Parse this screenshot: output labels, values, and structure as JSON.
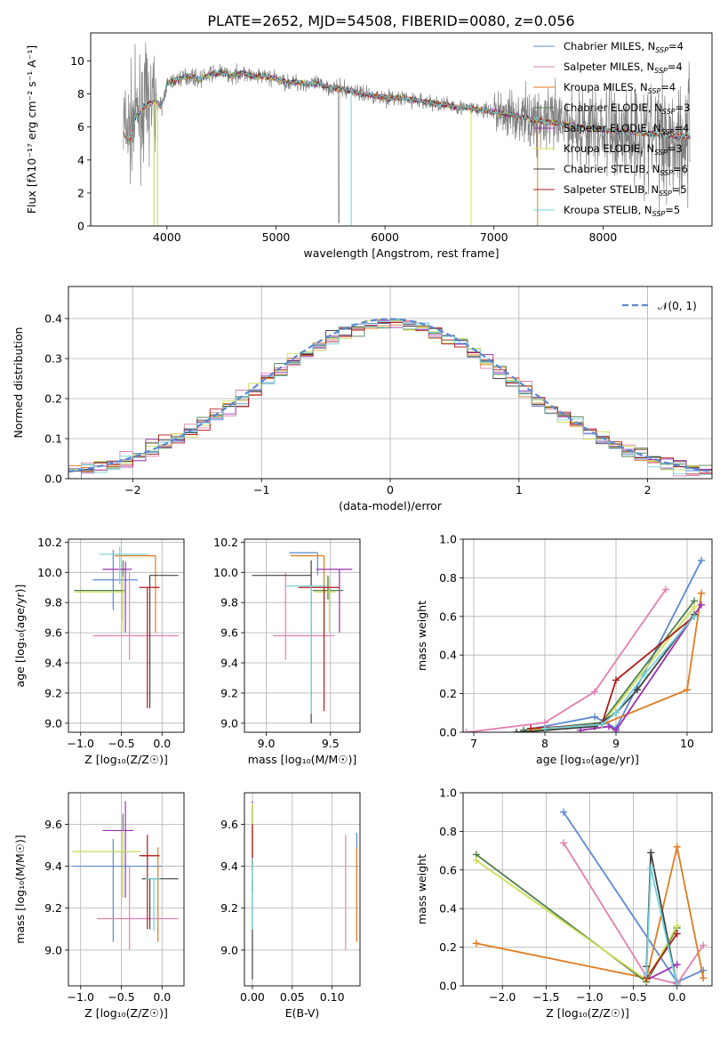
{
  "figure_title": "PLATE=2652, MJD=54508, FIBERID=0080, z=0.056",
  "colors": {
    "Chabrier MILES": "#5b88d2",
    "Salpeter MILES": "#e27fb0",
    "Kroupa MILES": "#e07a1f",
    "Chabrier ELODIE": "#4e7f4e",
    "Salpeter ELODIE": "#9b2fb0",
    "Kroupa ELODIE": "#cddf55",
    "Chabrier STELIB": "#404040",
    "Salpeter STELIB": "#b01a1a",
    "Kroupa STELIB": "#72d2dc",
    "data": "#808080",
    "normal": "#5b88d2"
  },
  "chart_data": [
    {
      "id": "spectrum",
      "type": "line",
      "title": "PLATE=2652, MJD=54508, FIBERID=0080, z=0.056",
      "xlabel": "wavelength [Angstrom, rest frame]",
      "ylabel": "Flux [fλ10⁻¹⁷ erg cm⁻² s⁻¹ A⁻¹]",
      "xlim": [
        3300,
        9000
      ],
      "ylim": [
        0,
        11.7
      ],
      "xticks": [
        4000,
        5000,
        6000,
        7000,
        8000
      ],
      "yticks": [
        0,
        2,
        4,
        6,
        8,
        10
      ],
      "grid": false,
      "legend_position": "top-right",
      "legend": [
        {
          "name": "Chabrier MILES",
          "nssp": "4"
        },
        {
          "name": "Salpeter MILES",
          "nssp": "4"
        },
        {
          "name": "Kroupa MILES",
          "nssp": "4"
        },
        {
          "name": "Chabrier ELODIE",
          "nssp": "3"
        },
        {
          "name": "Salpeter ELODIE",
          "nssp": "4"
        },
        {
          "name": "Kroupa ELODIE",
          "nssp": "3"
        },
        {
          "name": "Chabrier STELIB",
          "nssp": "6"
        },
        {
          "name": "Salpeter STELIB",
          "nssp": "5"
        },
        {
          "name": "Kroupa STELIB",
          "nssp": "5"
        }
      ],
      "continuum": [
        [
          3600,
          6.2
        ],
        [
          3650,
          5.7
        ],
        [
          3700,
          6.5
        ],
        [
          3800,
          7.3
        ],
        [
          3900,
          7.6
        ],
        [
          3950,
          7.2
        ],
        [
          4000,
          8.6
        ],
        [
          4100,
          8.9
        ],
        [
          4200,
          9.1
        ],
        [
          4300,
          8.9
        ],
        [
          4400,
          9.2
        ],
        [
          4500,
          9.3
        ],
        [
          4600,
          9.1
        ],
        [
          4700,
          9.3
        ],
        [
          4800,
          9.0
        ],
        [
          4900,
          9.1
        ],
        [
          5000,
          8.9
        ],
        [
          5100,
          8.7
        ],
        [
          5200,
          8.7
        ],
        [
          5300,
          8.6
        ],
        [
          5400,
          8.6
        ],
        [
          5500,
          8.4
        ],
        [
          5600,
          8.3
        ],
        [
          5700,
          8.2
        ],
        [
          5800,
          8.0
        ],
        [
          5900,
          7.9
        ],
        [
          6000,
          7.8
        ],
        [
          6200,
          7.7
        ],
        [
          6400,
          7.5
        ],
        [
          6600,
          7.3
        ],
        [
          6800,
          7.1
        ],
        [
          7000,
          6.9
        ],
        [
          7200,
          6.7
        ],
        [
          7400,
          6.4
        ],
        [
          7600,
          6.2
        ],
        [
          7800,
          6.0
        ],
        [
          8000,
          5.8
        ],
        [
          8200,
          5.7
        ],
        [
          8400,
          5.6
        ],
        [
          8600,
          5.5
        ],
        [
          8800,
          5.4
        ]
      ]
    },
    {
      "id": "residuals",
      "type": "histogram",
      "xlabel": "(data-model)/error",
      "ylabel": "Normed distribution",
      "xlim": [
        -2.5,
        2.5
      ],
      "ylim": [
        0,
        0.48
      ],
      "xticks": [
        -2,
        -1,
        0,
        1,
        2
      ],
      "yticks": [
        0.0,
        0.1,
        0.2,
        0.3,
        0.4
      ],
      "grid": true,
      "legend_position": "top-right",
      "legend": [
        "𝒩(0, 1)"
      ],
      "bin_width": 0.1,
      "bin_start": -2.5
    },
    {
      "id": "age-vs-Z",
      "type": "scatter",
      "xlabel": "Z [log₁₀(Z/Z☉)]",
      "ylabel": "age [log₁₀(age/yr)]",
      "xlim": [
        -1.15,
        0.27
      ],
      "ylim": [
        8.94,
        10.22
      ],
      "xticks": [
        -1.0,
        -0.5,
        0.0
      ],
      "yticks": [
        9.0,
        9.2,
        9.4,
        9.6,
        9.8,
        10.0,
        10.2
      ],
      "grid": true,
      "series": [
        {
          "name": "Chabrier MILES",
          "x": -0.6,
          "xerr": [
            0.25,
            0.3
          ],
          "y": 9.95,
          "yerr": [
            0.2,
            0.2
          ]
        },
        {
          "name": "Salpeter MILES",
          "x": -0.4,
          "xerr": [
            0.45,
            0.6
          ],
          "y": 9.58,
          "yerr": [
            0.16,
            0.42
          ]
        },
        {
          "name": "Kroupa MILES",
          "x": -0.08,
          "xerr": [
            0.5,
            0.0
          ],
          "y": 10.11,
          "yerr": [
            0.51,
            0.0
          ]
        },
        {
          "name": "Chabrier ELODIE",
          "x": -0.48,
          "xerr": [
            0.6,
            0.02
          ],
          "y": 9.88,
          "yerr": [
            0.2,
            0.2
          ]
        },
        {
          "name": "Salpeter ELODIE",
          "x": -0.45,
          "xerr": [
            0.28,
            0.08
          ],
          "y": 10.02,
          "yerr": [
            0.42,
            0.05
          ]
        },
        {
          "name": "Kroupa ELODIE",
          "x": -0.48,
          "xerr": [
            0.6,
            0.02
          ],
          "y": 9.87,
          "yerr": [
            0.27,
            0.1
          ]
        },
        {
          "name": "Chabrier STELIB",
          "x": -0.15,
          "xerr": [
            0.0,
            0.35
          ],
          "y": 9.98,
          "yerr": [
            0.88,
            0.0
          ]
        },
        {
          "name": "Salpeter STELIB",
          "x": -0.18,
          "xerr": [
            0.1,
            0.15
          ],
          "y": 9.9,
          "yerr": [
            0.8,
            0.0
          ]
        },
        {
          "name": "Kroupa STELIB",
          "x": -0.52,
          "xerr": [
            0.25,
            0.35
          ],
          "y": 10.12,
          "yerr": [
            0.2,
            0.05
          ]
        }
      ]
    },
    {
      "id": "age-vs-mass",
      "type": "scatter",
      "xlabel": "mass [log₁₀(M/M☉)]",
      "ylabel": "",
      "xlim": [
        8.83,
        9.73
      ],
      "ylim": [
        8.94,
        10.22
      ],
      "xticks": [
        9.0,
        9.5
      ],
      "yticks": [
        9.0,
        9.2,
        9.4,
        9.6,
        9.8,
        10.0,
        10.2
      ],
      "grid": true,
      "series": [
        {
          "name": "Chabrier MILES",
          "x": 9.4,
          "xerr": [
            0.22,
            0.0
          ],
          "y": 10.13,
          "yerr": [
            0.15,
            0.0
          ]
        },
        {
          "name": "Salpeter MILES",
          "x": 9.15,
          "xerr": [
            0.1,
            0.38
          ],
          "y": 9.58,
          "yerr": [
            0.16,
            0.42
          ]
        },
        {
          "name": "Kroupa MILES",
          "x": 9.45,
          "xerr": [
            0.26,
            0.0
          ],
          "y": 10.11,
          "yerr": [
            0.5,
            0.0
          ]
        },
        {
          "name": "Chabrier ELODIE",
          "x": 9.48,
          "xerr": [
            0.12,
            0.12
          ],
          "y": 9.88,
          "yerr": [
            0.06,
            0.1
          ]
        },
        {
          "name": "Salpeter ELODIE",
          "x": 9.57,
          "xerr": [
            0.18,
            0.1
          ],
          "y": 10.02,
          "yerr": [
            0.42,
            0.0
          ]
        },
        {
          "name": "Kroupa ELODIE",
          "x": 9.49,
          "xerr": [
            0.12,
            0.05
          ],
          "y": 9.87,
          "yerr": [
            0.27,
            0.1
          ]
        },
        {
          "name": "Chabrier STELIB",
          "x": 9.35,
          "xerr": [
            0.46,
            0.0
          ],
          "y": 9.98,
          "yerr": [
            0.98,
            0.1
          ]
        },
        {
          "name": "Salpeter STELIB",
          "x": 9.45,
          "xerr": [
            0.2,
            0.12
          ],
          "y": 9.9,
          "yerr": [
            0.82,
            0.0
          ]
        },
        {
          "name": "Kroupa STELIB",
          "x": 9.35,
          "xerr": [
            0.2,
            0.12
          ],
          "y": 9.91,
          "yerr": [
            0.85,
            0.0
          ]
        }
      ]
    },
    {
      "id": "weight-vs-age",
      "type": "line",
      "xlabel": "age [log₁₀(age/yr)]",
      "ylabel": "mass weight",
      "xlim": [
        6.85,
        10.35
      ],
      "ylim": [
        0.0,
        1.0
      ],
      "xticks": [
        7,
        8,
        9,
        10
      ],
      "yticks": [
        0.0,
        0.2,
        0.4,
        0.6,
        0.8,
        1.0
      ],
      "grid": true,
      "series": [
        {
          "name": "Chabrier MILES",
          "x": [
            7.7,
            8.7,
            9.0,
            10.2
          ],
          "y": [
            0.01,
            0.08,
            0.02,
            0.89
          ]
        },
        {
          "name": "Salpeter MILES",
          "x": [
            6.9,
            8.0,
            8.7,
            9.7
          ],
          "y": [
            0.0,
            0.05,
            0.21,
            0.74
          ]
        },
        {
          "name": "Kroupa MILES",
          "x": [
            8.0,
            8.8,
            10.0,
            10.2
          ],
          "y": [
            0.02,
            0.04,
            0.22,
            0.72
          ]
        },
        {
          "name": "Chabrier ELODIE",
          "x": [
            7.7,
            8.8,
            10.1
          ],
          "y": [
            0.01,
            0.05,
            0.68
          ]
        },
        {
          "name": "Salpeter ELODIE",
          "x": [
            8.5,
            8.9,
            9.0,
            10.2
          ],
          "y": [
            0.01,
            0.03,
            0.01,
            0.66
          ]
        },
        {
          "name": "Kroupa ELODIE",
          "x": [
            7.8,
            8.8,
            10.1
          ],
          "y": [
            0.01,
            0.04,
            0.65
          ]
        },
        {
          "name": "Chabrier STELIB",
          "x": [
            7.6,
            8.0,
            8.7,
            9.0,
            9.3,
            10.1
          ],
          "y": [
            0.0,
            0.01,
            0.03,
            0.1,
            0.22,
            0.61
          ]
        },
        {
          "name": "Salpeter STELIB",
          "x": [
            7.8,
            8.8,
            9.0,
            10.1
          ],
          "y": [
            0.02,
            0.04,
            0.27,
            0.6
          ]
        },
        {
          "name": "Kroupa STELIB",
          "x": [
            8.0,
            8.8,
            9.0,
            9.4,
            10.1
          ],
          "y": [
            0.02,
            0.04,
            0.1,
            0.3,
            0.6
          ]
        }
      ]
    },
    {
      "id": "mass-vs-Z",
      "type": "scatter",
      "xlabel": "Z [log₁₀(Z/Z☉)]",
      "ylabel": "mass [log₁₀(M/M☉)]",
      "xlim": [
        -1.15,
        0.27
      ],
      "ylim": [
        8.83,
        9.75
      ],
      "xticks": [
        -1.0,
        -0.5,
        0.0
      ],
      "yticks": [
        9.0,
        9.2,
        9.4,
        9.6
      ],
      "grid": true,
      "series": [
        {
          "name": "Chabrier MILES",
          "x": -0.6,
          "xerr": [
            0.5,
            0.6
          ],
          "y": 9.4,
          "yerr": [
            0.36,
            0.13
          ]
        },
        {
          "name": "Salpeter MILES",
          "x": -0.4,
          "xerr": [
            0.4,
            0.6
          ],
          "y": 9.15,
          "yerr": [
            0.15,
            0.25
          ]
        },
        {
          "name": "Kroupa MILES",
          "x": -0.05,
          "xerr": [
            0.2,
            0.0
          ],
          "y": 9.45,
          "yerr": [
            0.41,
            0.04
          ]
        },
        {
          "name": "Chabrier ELODIE",
          "x": -0.48,
          "xerr": [
            0.62,
            0.22
          ],
          "y": 9.47,
          "yerr": [
            0.22,
            0.18
          ]
        },
        {
          "name": "Salpeter ELODIE",
          "x": -0.45,
          "xerr": [
            0.28,
            0.1
          ],
          "y": 9.57,
          "yerr": [
            0.32,
            0.14
          ]
        },
        {
          "name": "Kroupa ELODIE",
          "x": -0.48,
          "xerr": [
            0.62,
            0.22
          ],
          "y": 9.47,
          "yerr": [
            0.22,
            0.1
          ]
        },
        {
          "name": "Chabrier STELIB",
          "x": -0.15,
          "xerr": [
            0.1,
            0.35
          ],
          "y": 9.34,
          "yerr": [
            0.24,
            0.0
          ]
        },
        {
          "name": "Salpeter STELIB",
          "x": -0.18,
          "xerr": [
            0.1,
            0.15
          ],
          "y": 9.45,
          "yerr": [
            0.35,
            0.1
          ]
        },
        {
          "name": "Kroupa STELIB",
          "x": -0.1,
          "xerr": [
            0.1,
            0.08
          ],
          "y": 9.34,
          "yerr": [
            0.25,
            0.0
          ]
        }
      ]
    },
    {
      "id": "mass-vs-EBV",
      "type": "scatter",
      "xlabel": "E(B-V)",
      "ylabel": "",
      "xlim": [
        -0.01,
        0.135
      ],
      "ylim": [
        8.83,
        9.75
      ],
      "xticks": [
        0.0,
        0.05,
        0.1
      ],
      "yticks": [
        9.0,
        9.2,
        9.4,
        9.6
      ],
      "grid": true,
      "series": [
        {
          "name": "Chabrier MILES",
          "x": 0.131,
          "y": 9.4,
          "yerr": [
            0.36,
            0.16
          ]
        },
        {
          "name": "Salpeter MILES",
          "x": 0.117,
          "y": 9.15,
          "yerr": [
            0.15,
            0.4
          ]
        },
        {
          "name": "Kroupa MILES",
          "x": 0.131,
          "y": 9.45,
          "yerr": [
            0.41,
            0.04
          ]
        },
        {
          "name": "Chabrier ELODIE",
          "x": 0.0,
          "y": 9.47,
          "yerr": [
            0.2,
            0.22
          ]
        },
        {
          "name": "Salpeter ELODIE",
          "x": 0.0,
          "y": 9.57,
          "yerr": [
            0.2,
            0.14
          ]
        },
        {
          "name": "Kroupa ELODIE",
          "x": 0.0,
          "y": 9.47,
          "yerr": [
            0.2,
            0.23
          ]
        },
        {
          "name": "Chabrier STELIB",
          "x": 0.0,
          "y": 9.34,
          "yerr": [
            0.48,
            0.0
          ]
        },
        {
          "name": "Salpeter STELIB",
          "x": 0.0,
          "y": 9.45,
          "yerr": [
            0.05,
            0.15
          ]
        },
        {
          "name": "Kroupa STELIB",
          "x": 0.0,
          "y": 9.34,
          "yerr": [
            0.24,
            0.1
          ]
        }
      ]
    },
    {
      "id": "weight-vs-Z",
      "type": "line",
      "xlabel": "Z [log₁₀(Z/Z☉)]",
      "ylabel": "mass weight",
      "xlim": [
        -2.45,
        0.4
      ],
      "ylim": [
        0.0,
        1.0
      ],
      "xticks": [
        -2.0,
        -1.5,
        -1.0,
        -0.5,
        0.0
      ],
      "yticks": [
        0.0,
        0.2,
        0.4,
        0.6,
        0.8,
        1.0
      ],
      "grid": true,
      "series": [
        {
          "name": "Chabrier MILES",
          "x": [
            -1.3,
            0.0,
            0.3
          ],
          "y": [
            0.9,
            0.02,
            0.08
          ]
        },
        {
          "name": "Salpeter MILES",
          "x": [
            -1.3,
            -0.35,
            0.0,
            0.3
          ],
          "y": [
            0.74,
            0.05,
            0.01,
            0.21
          ]
        },
        {
          "name": "Kroupa MILES",
          "x": [
            -2.3,
            -0.35,
            0.0,
            0.3
          ],
          "y": [
            0.22,
            0.04,
            0.72,
            0.04
          ]
        },
        {
          "name": "Chabrier ELODIE",
          "x": [
            -2.3,
            -0.35,
            0.0
          ],
          "y": [
            0.68,
            0.02,
            0.3
          ]
        },
        {
          "name": "Salpeter ELODIE",
          "x": [
            -0.35,
            0.0
          ],
          "y": [
            0.03,
            0.11
          ]
        },
        {
          "name": "Kroupa ELODIE",
          "x": [
            -2.3,
            -0.35,
            0.0
          ],
          "y": [
            0.65,
            0.03,
            0.31
          ]
        },
        {
          "name": "Chabrier STELIB",
          "x": [
            -0.35,
            -0.3,
            0.0
          ],
          "y": [
            0.1,
            0.69,
            0.0
          ]
        },
        {
          "name": "Salpeter STELIB",
          "x": [
            -0.35,
            0.0
          ],
          "y": [
            0.04,
            0.27
          ]
        },
        {
          "name": "Kroupa STELIB",
          "x": [
            -0.35,
            -0.3,
            0.0
          ],
          "y": [
            0.06,
            0.61,
            0.0
          ]
        }
      ]
    }
  ]
}
